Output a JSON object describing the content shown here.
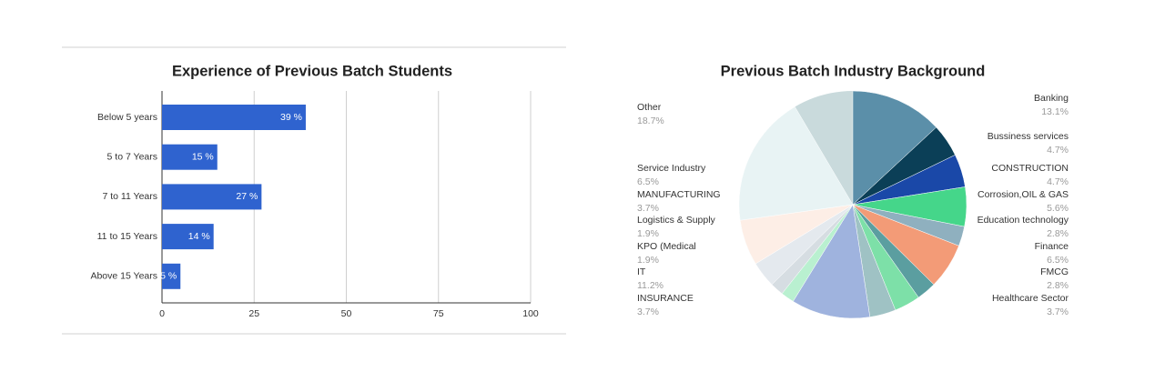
{
  "chart_data": [
    {
      "type": "bar",
      "title": "Experience of Previous Batch Students",
      "categories": [
        "Below 5 years",
        "5 to 7 Years",
        "7 to 11 Years",
        "11 to 15 Years",
        "Above 15 Years"
      ],
      "values": [
        39,
        15,
        27,
        14,
        5
      ],
      "value_labels": [
        "39 %",
        "15 %",
        "27 %",
        "14 %",
        "5 %"
      ],
      "color": "#2f63cf",
      "xlim": [
        0,
        100
      ],
      "xticks": [
        0,
        25,
        50,
        75,
        100
      ],
      "grid": true
    },
    {
      "type": "pie",
      "title": "Previous Batch Industry Background",
      "categories": [
        "Banking",
        "Bussiness services",
        "CONSTRUCTION",
        "Corrosion,OIL & GAS",
        "Education technology",
        "Finance",
        "FMCG",
        "Healthcare Sector",
        "INSURANCE",
        "IT",
        "KPO (Medical",
        "Logistics & Supply",
        "MANUFACTURING",
        "Service Industry",
        "Other"
      ],
      "values": [
        13.1,
        4.7,
        4.7,
        5.6,
        2.8,
        6.5,
        2.8,
        3.7,
        3.7,
        11.2,
        1.9,
        1.9,
        3.7,
        6.5,
        18.7
      ],
      "value_labels": [
        "13.1%",
        "4.7%",
        "4.7%",
        "5.6%",
        "2.8%",
        "6.5%",
        "2.8%",
        "3.7%",
        "3.7%",
        "11.2%",
        "1.9%",
        "1.9%",
        "3.7%",
        "6.5%",
        "18.7%"
      ],
      "colors": [
        "#5b8fa9",
        "#0b3f57",
        "#1a48a8",
        "#45d68a",
        "#8fb0bf",
        "#f39b77",
        "#5b9ea0",
        "#7de0a8",
        "#9fc2c4",
        "#9fb3de",
        "#b9f0d0",
        "#d6dde2",
        "#e4e9ee",
        "#fdeee6",
        "#e8f3f4"
      ]
    }
  ]
}
